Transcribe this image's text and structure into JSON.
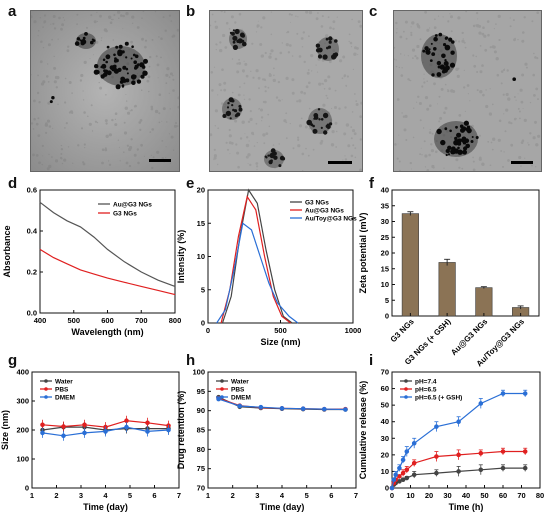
{
  "panel_labels": [
    "a",
    "b",
    "c",
    "d",
    "e",
    "f",
    "g",
    "h",
    "i"
  ],
  "chart_data": [
    {
      "panel": "d",
      "type": "line",
      "xlabel": "Wavelength (nm)",
      "ylabel": "Absorbance",
      "xlim": [
        400,
        800
      ],
      "ylim": [
        0.0,
        0.6
      ],
      "xticks": [
        "400",
        "500",
        "600",
        "700",
        "800"
      ],
      "yticks": [
        "0.0",
        "0.2",
        "0.4",
        "0.6"
      ],
      "legend": [
        "Au@G3 NGs",
        "G3 NGs"
      ],
      "colors": [
        "#555555",
        "#e02020"
      ],
      "series": [
        {
          "name": "Au@G3 NGs",
          "x": [
            400,
            440,
            480,
            520,
            560,
            600,
            650,
            700,
            750,
            800
          ],
          "values": [
            0.54,
            0.49,
            0.45,
            0.42,
            0.37,
            0.31,
            0.25,
            0.2,
            0.16,
            0.13
          ]
        },
        {
          "name": "G3 NGs",
          "x": [
            400,
            440,
            480,
            520,
            560,
            600,
            650,
            700,
            750,
            800
          ],
          "values": [
            0.31,
            0.27,
            0.24,
            0.21,
            0.19,
            0.17,
            0.15,
            0.13,
            0.11,
            0.09
          ]
        }
      ]
    },
    {
      "panel": "e",
      "type": "line",
      "xlabel": "Size (nm)",
      "ylabel": "Intensity (%)",
      "xlim": [
        0,
        1000
      ],
      "ylim": [
        0,
        20
      ],
      "xticks": [
        "0",
        "500",
        "1000"
      ],
      "yticks": [
        "0",
        "5",
        "10",
        "15",
        "20"
      ],
      "legend": [
        "G3 NGs",
        "Au@G3 NGs",
        "Au/Toy@G3 NGs"
      ],
      "colors": [
        "#444444",
        "#e02020",
        "#2a6fd6"
      ],
      "series": [
        {
          "name": "G3 NGs",
          "x": [
            100,
            160,
            220,
            280,
            340,
            400,
            460,
            520,
            580
          ],
          "values": [
            0,
            4,
            13,
            20,
            18,
            11,
            5,
            1,
            0
          ]
        },
        {
          "name": "Au@G3 NGs",
          "x": [
            90,
            150,
            210,
            270,
            330,
            390,
            450,
            510,
            570
          ],
          "values": [
            0,
            5,
            13,
            19,
            17,
            10,
            4,
            1,
            0
          ]
        },
        {
          "name": "Au/Toy@G3 NGs",
          "x": [
            60,
            120,
            180,
            240,
            300,
            360,
            420,
            480,
            560,
            620
          ],
          "values": [
            0,
            2,
            8,
            15,
            14,
            10,
            6,
            3,
            1,
            0
          ]
        }
      ]
    },
    {
      "panel": "f",
      "type": "bar",
      "ylabel": "Zeta potential (mV)",
      "ylim": [
        0,
        40
      ],
      "yticks": [
        "0",
        "5",
        "10",
        "15",
        "20",
        "25",
        "30",
        "35",
        "40"
      ],
      "categories": [
        "G3 NGs",
        "G3 NGs (+ GSH)",
        "Au@G3 NGs",
        "Au/Toy@G3 NGs"
      ],
      "values": [
        32.5,
        17.0,
        9.0,
        2.7
      ],
      "errors": [
        0.6,
        1.0,
        0.3,
        0.5
      ],
      "color": "#8b7355"
    },
    {
      "panel": "g",
      "type": "line",
      "xlabel": "Time (day)",
      "ylabel": "Size (nm)",
      "xlim": [
        0.5,
        7.5
      ],
      "ylim": [
        0,
        400
      ],
      "xticks": [
        "1",
        "2",
        "3",
        "4",
        "5",
        "6",
        "7"
      ],
      "yticks": [
        "0",
        "100",
        "200",
        "300",
        "400"
      ],
      "legend": [
        "Water",
        "PBS",
        "DMEM"
      ],
      "colors": [
        "#444444",
        "#e02020",
        "#2a6fd6"
      ],
      "series": [
        {
          "name": "Water",
          "x": [
            1,
            2,
            3,
            4,
            5,
            6,
            7
          ],
          "values": [
            200,
            210,
            210,
            200,
            205,
            205,
            205
          ]
        },
        {
          "name": "PBS",
          "x": [
            1,
            2,
            3,
            4,
            5,
            6,
            7
          ],
          "values": [
            218,
            212,
            218,
            210,
            232,
            225,
            215
          ]
        },
        {
          "name": "DMEM",
          "x": [
            1,
            2,
            3,
            4,
            5,
            6,
            7
          ],
          "values": [
            190,
            180,
            190,
            195,
            210,
            195,
            200
          ]
        }
      ]
    },
    {
      "panel": "h",
      "type": "line",
      "xlabel": "Time (day)",
      "ylabel": "Drug retention (%)",
      "xlim": [
        0.5,
        7.5
      ],
      "ylim": [
        70,
        100
      ],
      "xticks": [
        "1",
        "2",
        "3",
        "4",
        "5",
        "6",
        "7"
      ],
      "yticks": [
        "70",
        "75",
        "80",
        "85",
        "90",
        "95",
        "100"
      ],
      "legend": [
        "Water",
        "PBS",
        "DMEM"
      ],
      "colors": [
        "#444444",
        "#e02020",
        "#2a6fd6"
      ],
      "series": [
        {
          "name": "Water",
          "x": [
            1,
            2,
            3,
            4,
            5,
            6,
            7
          ],
          "values": [
            93.5,
            91.0,
            90.7,
            90.5,
            90.4,
            90.3,
            90.3
          ]
        },
        {
          "name": "PBS",
          "x": [
            1,
            2,
            3,
            4,
            5,
            6,
            7
          ],
          "values": [
            93.2,
            91.3,
            90.8,
            90.6,
            90.5,
            90.4,
            90.4
          ]
        },
        {
          "name": "DMEM",
          "x": [
            1,
            2,
            3,
            4,
            5,
            6,
            7
          ],
          "values": [
            93.0,
            91.2,
            90.9,
            90.6,
            90.5,
            90.4,
            90.3
          ]
        }
      ]
    },
    {
      "panel": "i",
      "type": "line",
      "xlabel": "Time (h)",
      "ylabel": "Cumulative release (%)",
      "xlim": [
        0,
        80
      ],
      "ylim": [
        0,
        70
      ],
      "xticks": [
        "0",
        "10",
        "20",
        "30",
        "40",
        "50",
        "60",
        "70",
        "80"
      ],
      "yticks": [
        "0",
        "10",
        "20",
        "30",
        "40",
        "50",
        "60",
        "70"
      ],
      "legend": [
        "pH=7.4",
        "pH=6.5",
        "pH=6.5 (+ GSH)"
      ],
      "colors": [
        "#444444",
        "#e02020",
        "#2a6fd6"
      ],
      "series": [
        {
          "name": "pH=7.4",
          "x": [
            0,
            1,
            2,
            4,
            6,
            8,
            12,
            24,
            36,
            48,
            60,
            72
          ],
          "values": [
            0,
            2,
            3,
            4,
            5,
            6,
            8,
            9,
            10,
            11,
            12,
            12
          ]
        },
        {
          "name": "pH=6.5",
          "x": [
            0,
            1,
            2,
            4,
            6,
            8,
            12,
            24,
            36,
            48,
            60,
            72
          ],
          "values": [
            0,
            3,
            5,
            7,
            9,
            11,
            15,
            19,
            20,
            21,
            22,
            22
          ]
        },
        {
          "name": "pH=6.5 (+ GSH)",
          "x": [
            0,
            1,
            2,
            4,
            6,
            8,
            12,
            24,
            36,
            48,
            60,
            72
          ],
          "values": [
            0,
            5,
            8,
            12,
            17,
            22,
            27,
            37,
            40,
            51,
            57,
            57
          ]
        }
      ],
      "errors": [
        [
          0,
          1,
          1,
          1,
          1,
          1,
          2,
          2,
          3,
          3,
          2,
          2
        ],
        [
          0,
          1,
          1,
          1,
          2,
          2,
          2,
          3,
          3,
          2,
          2,
          2
        ],
        [
          0,
          1,
          2,
          2,
          2,
          3,
          3,
          3,
          3,
          3,
          2,
          2
        ]
      ]
    }
  ]
}
